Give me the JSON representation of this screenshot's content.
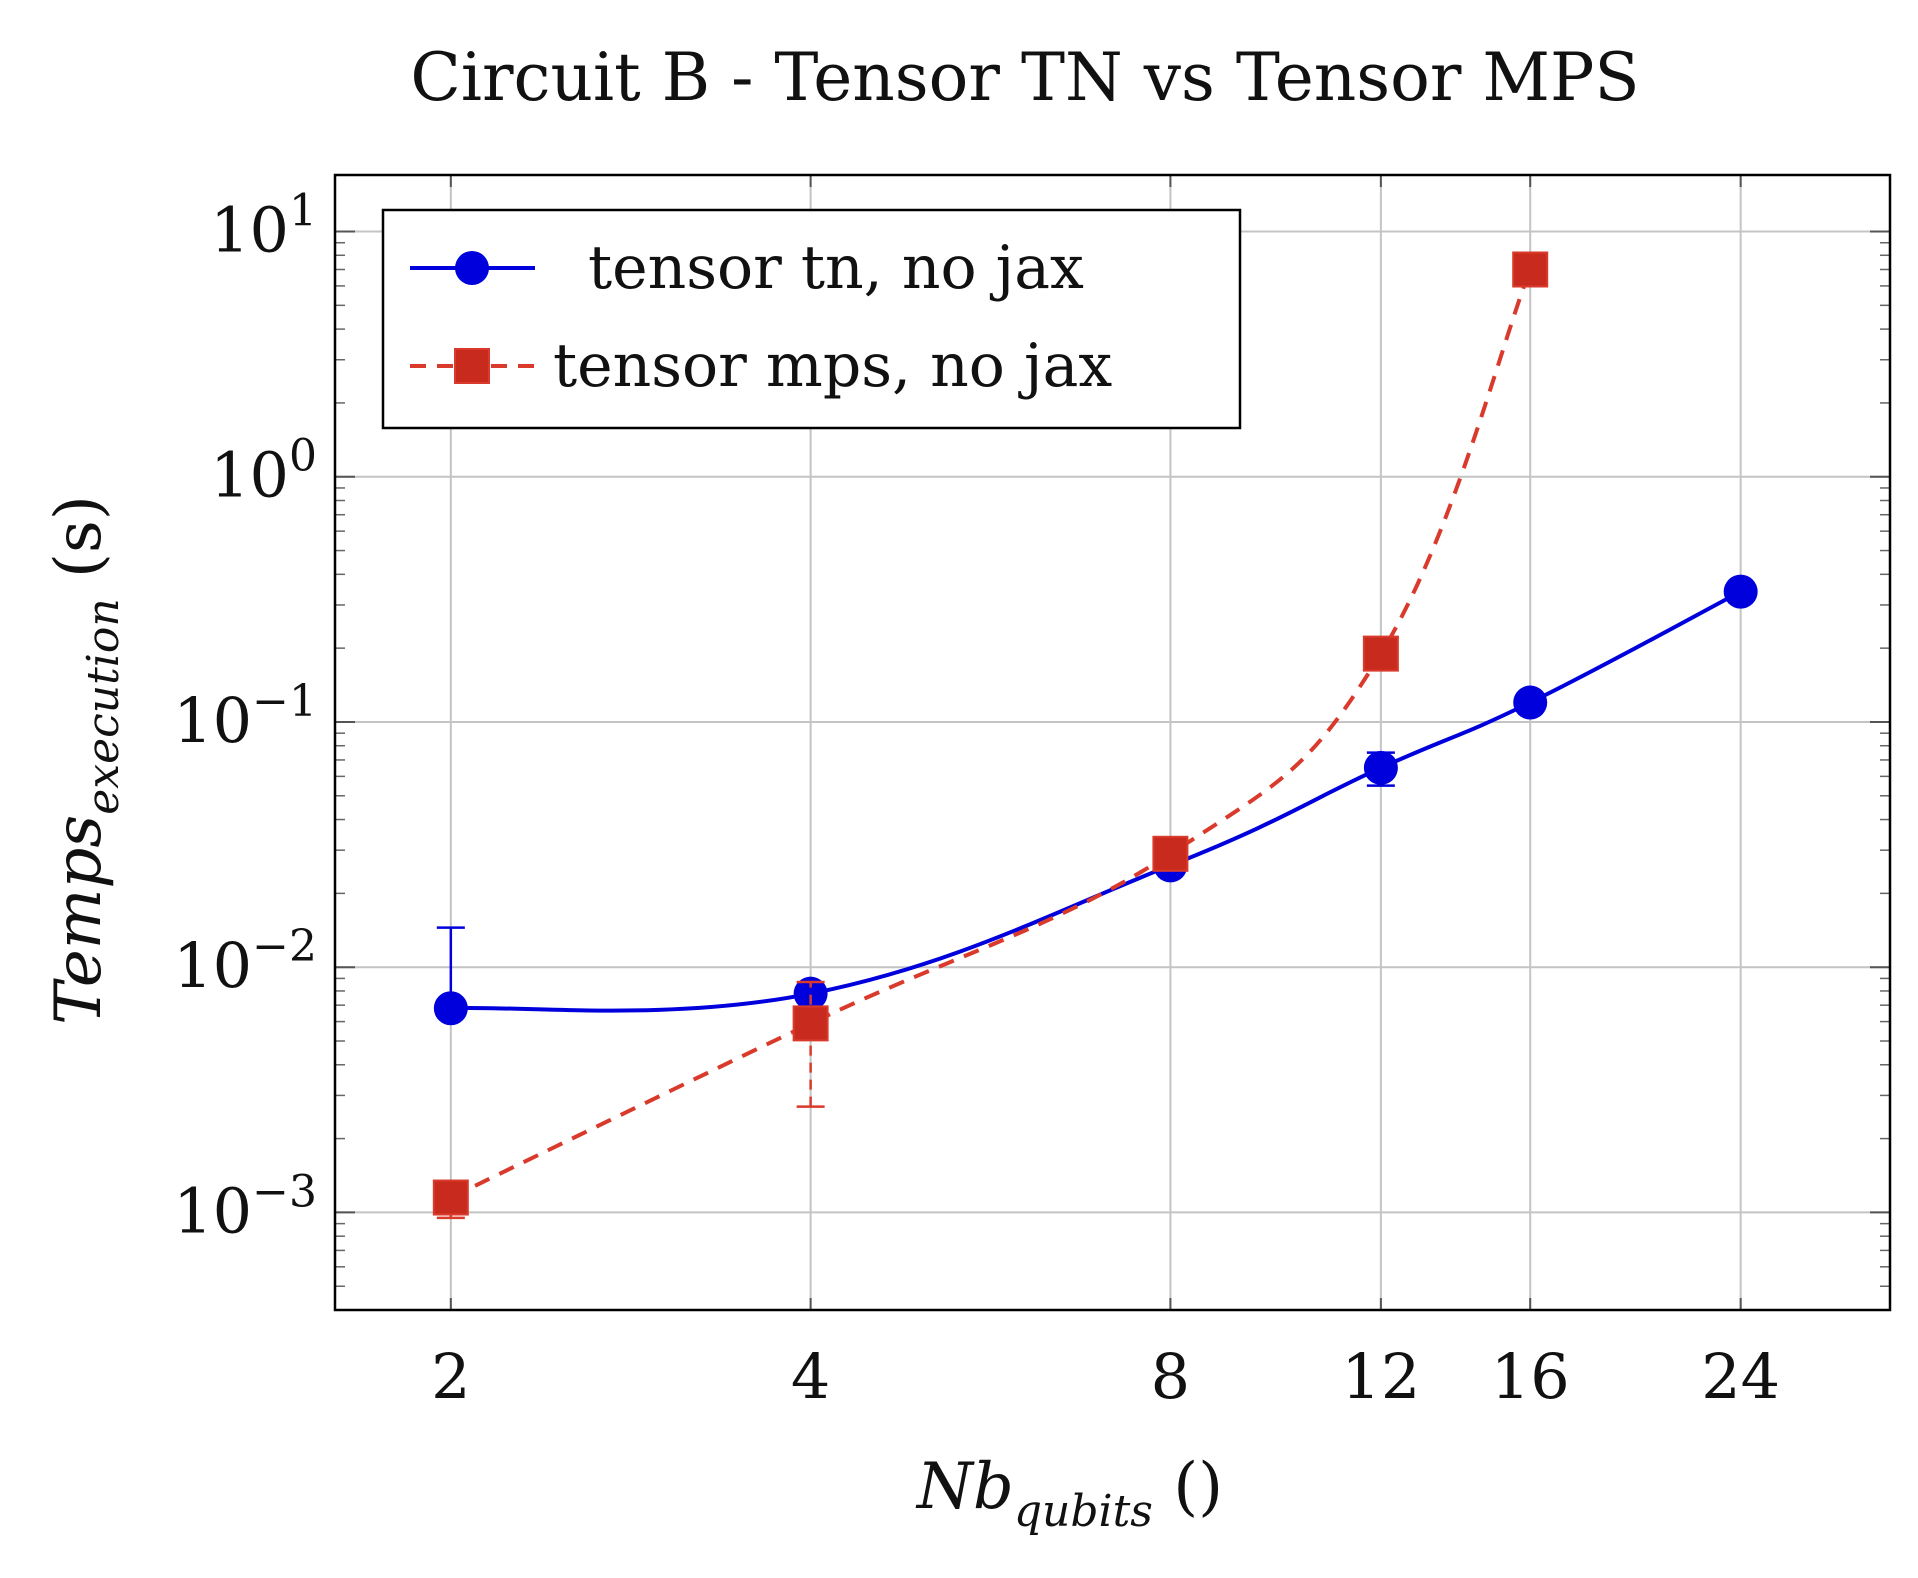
{
  "chart_data": {
    "type": "line",
    "title": "Circuit B - Tensor TN vs Tensor MPS",
    "xlabel": {
      "main": "Nb",
      "sub": "qubits",
      "suffix": " ()"
    },
    "ylabel": {
      "main": "Temps",
      "sub": "execution",
      "suffix": " (s)"
    },
    "x_scale": "log2",
    "y_scale": "log10",
    "xticks": [
      2,
      4,
      8,
      12,
      16,
      24
    ],
    "xtick_labels": [
      "2",
      "4",
      "8",
      "12",
      "16",
      "24"
    ],
    "xlim": [
      1.6,
      32
    ],
    "ytick_labels": [
      {
        "value": 0.001,
        "base": "10",
        "exp": "−3"
      },
      {
        "value": 0.01,
        "base": "10",
        "exp": "−2"
      },
      {
        "value": 0.1,
        "base": "10",
        "exp": "−1"
      },
      {
        "value": 1,
        "base": "10",
        "exp": "0"
      },
      {
        "value": 10,
        "base": "10",
        "exp": "1"
      }
    ],
    "ylim": [
      0.0004,
      17
    ],
    "grid": true,
    "legend_position": "top-left",
    "series": [
      {
        "name": "tensor tn, no jax",
        "color": "#0000dd",
        "line_style": "solid",
        "marker": "circle",
        "x": [
          2,
          4,
          8,
          12,
          16,
          24
        ],
        "y": [
          0.0068,
          0.0078,
          0.026,
          0.065,
          0.12,
          0.34
        ],
        "error_low": [
          0.0068,
          0.0078,
          0.026,
          0.055,
          0.12,
          0.34
        ],
        "error_high": [
          0.0145,
          0.0078,
          0.026,
          0.075,
          0.12,
          0.34
        ]
      },
      {
        "name": "tensor mps, no jax",
        "color": "#d93a2b",
        "line_style": "dashed",
        "marker": "square",
        "x": [
          2,
          4,
          8,
          12,
          16
        ],
        "y": [
          0.00115,
          0.0059,
          0.029,
          0.19,
          7.0
        ],
        "error_low": [
          0.00095,
          0.0027,
          0.029,
          0.19,
          7.0
        ],
        "error_high": [
          0.00125,
          0.0087,
          0.029,
          0.19,
          7.0
        ]
      }
    ]
  }
}
